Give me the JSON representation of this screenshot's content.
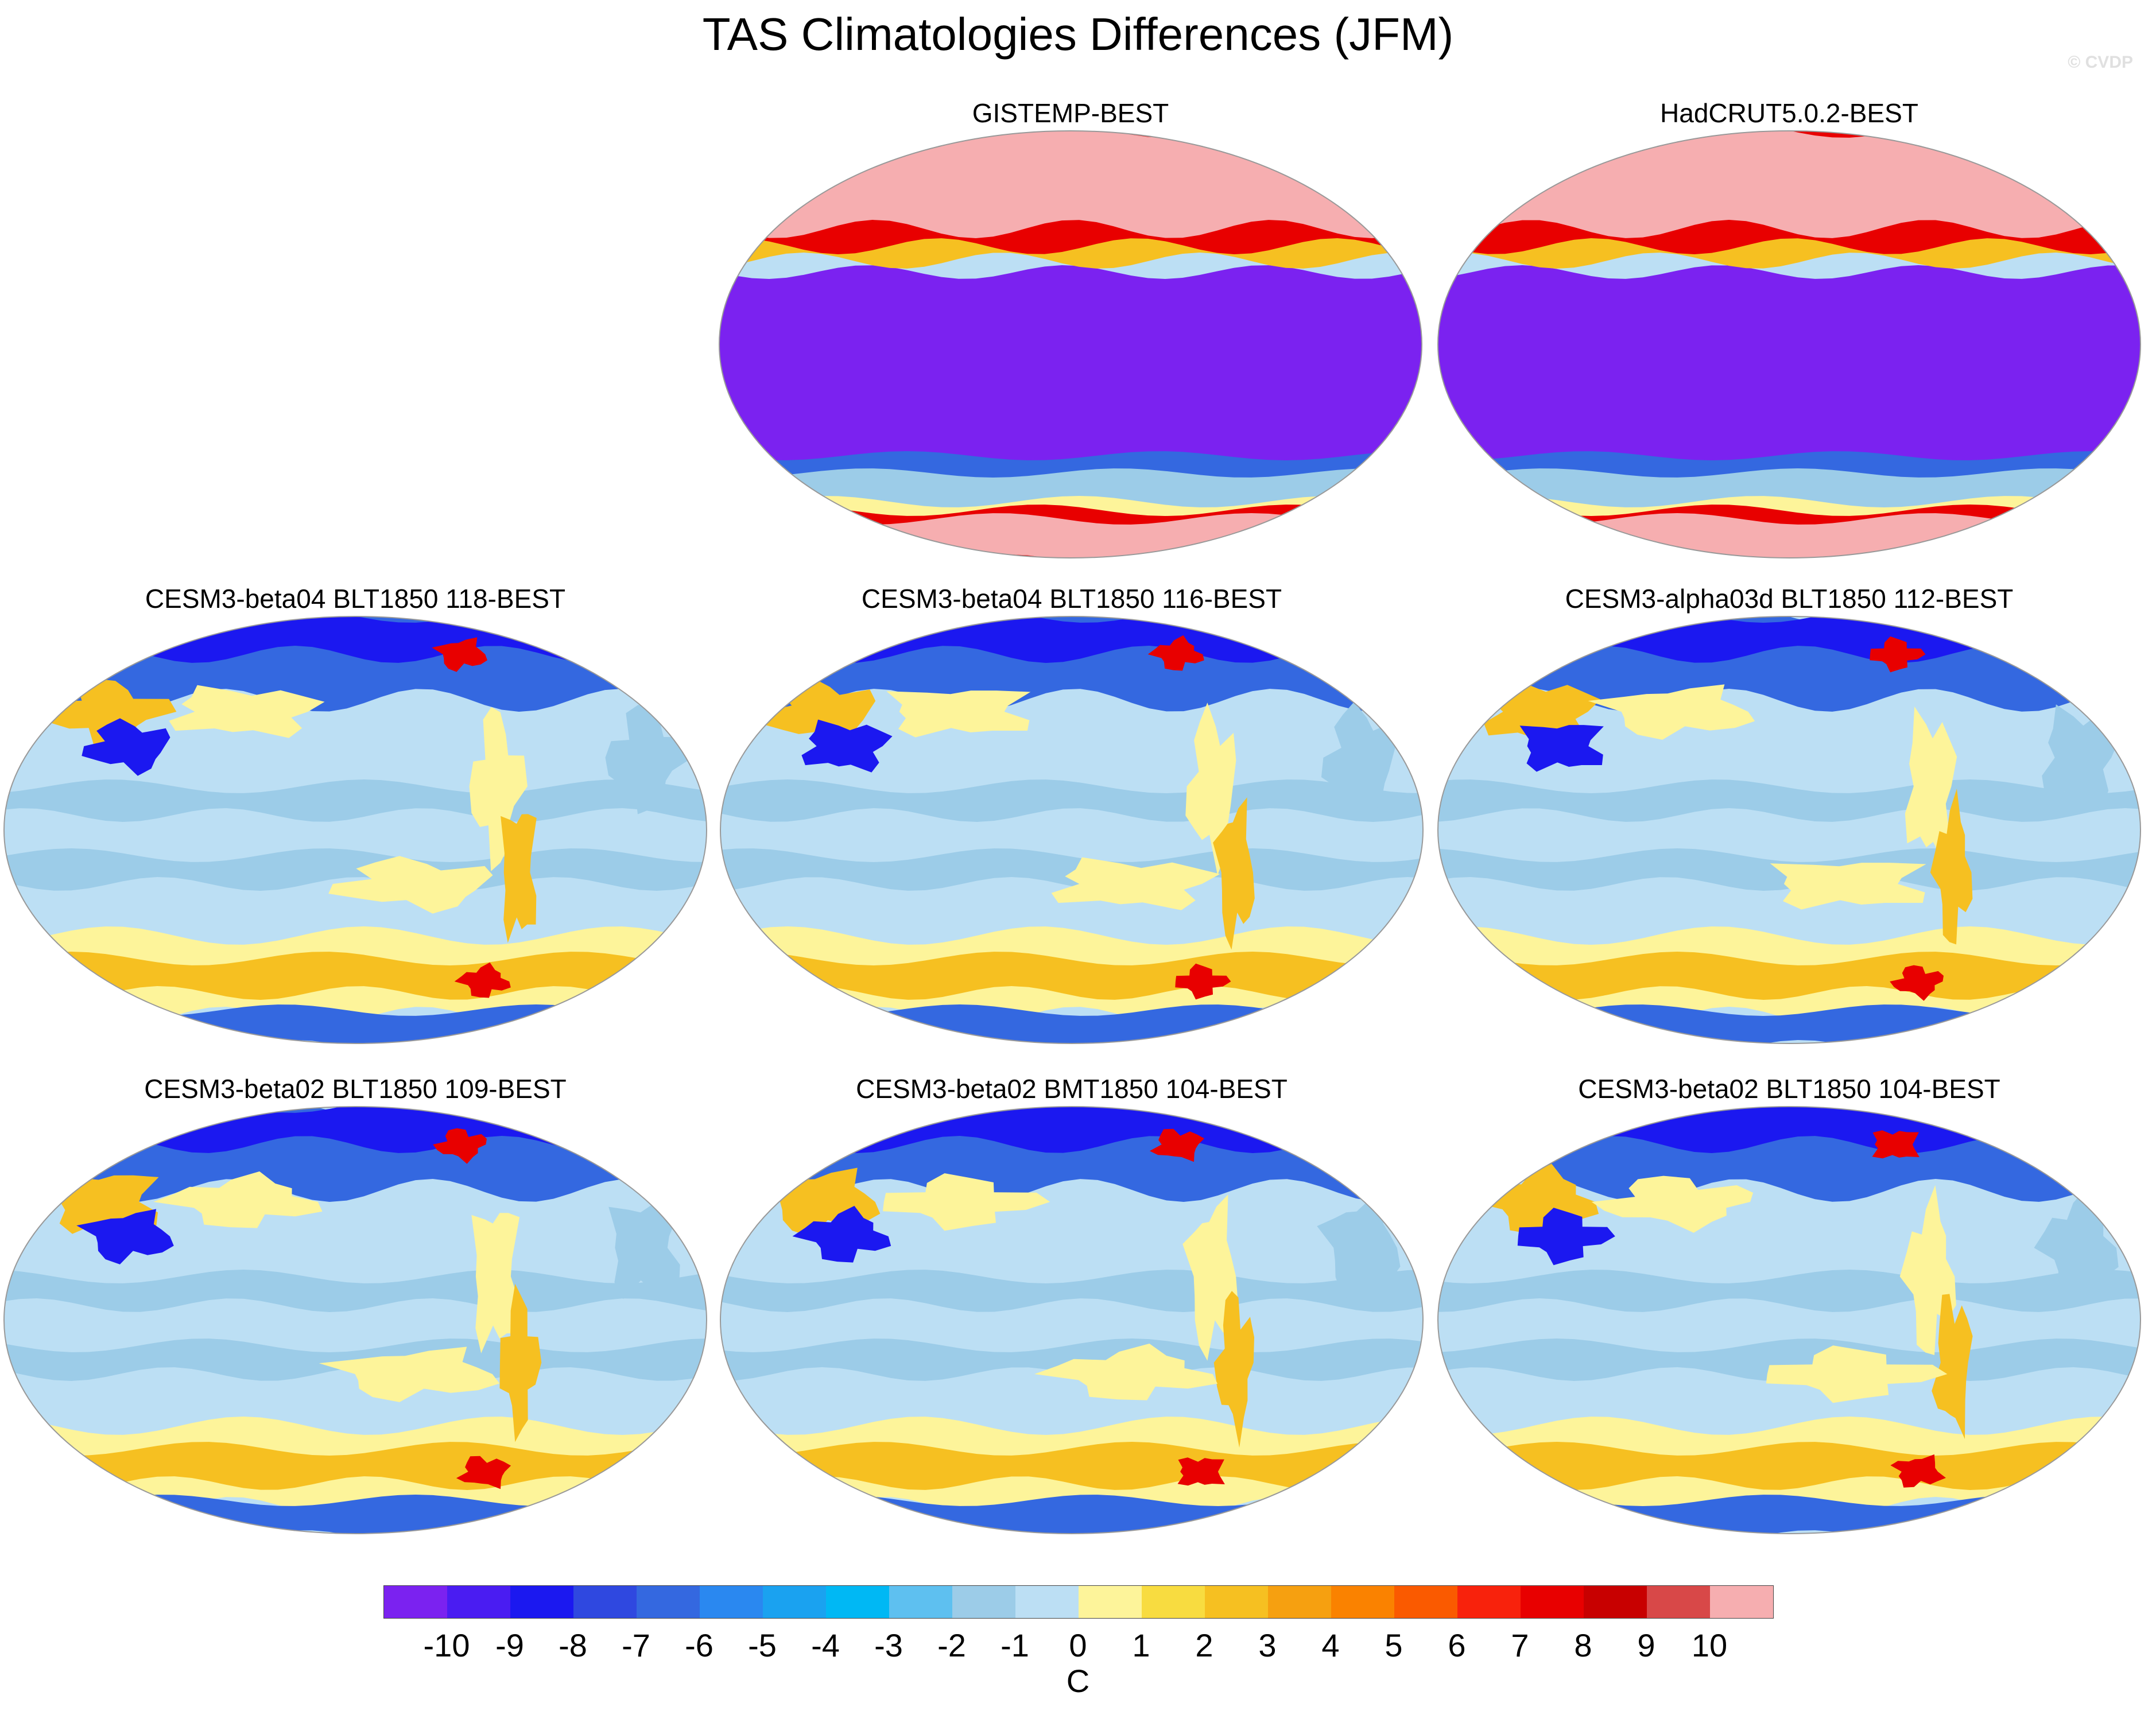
{
  "title": "TAS Climatologies Differences (JFM)",
  "credit": "© CVDP",
  "panels": [
    {
      "id": "p1",
      "title": "GISTEMP-BEST",
      "style": "obs"
    },
    {
      "id": "p2",
      "title": "HadCRUT5.0.2-BEST",
      "style": "obs"
    },
    {
      "id": "p3",
      "title": "CESM3-beta04 BLT1850 118-BEST",
      "style": "model"
    },
    {
      "id": "p4",
      "title": "CESM3-beta04 BLT1850 116-BEST",
      "style": "model"
    },
    {
      "id": "p5",
      "title": "CESM3-alpha03d BLT1850 112-BEST",
      "style": "model"
    },
    {
      "id": "p6",
      "title": "CESM3-beta02 BLT1850 109-BEST",
      "style": "model"
    },
    {
      "id": "p7",
      "title": "CESM3-beta02 BMT1850 104-BEST",
      "style": "model"
    },
    {
      "id": "p8",
      "title": "CESM3-beta02 BLT1850 104-BEST",
      "style": "model"
    }
  ],
  "colorbar": {
    "labels": [
      "-10",
      "-9",
      "-8",
      "-7",
      "-6",
      "-5",
      "-4",
      "-3",
      "-2",
      "-1",
      "0",
      "1",
      "2",
      "3",
      "4",
      "5",
      "6",
      "7",
      "8",
      "9",
      "10"
    ],
    "colors": [
      "#7b22f0",
      "#4a1cf2",
      "#1b18f0",
      "#2f48e0",
      "#3468e0",
      "#2a88f0",
      "#1aa2f0",
      "#00b8f4",
      "#5ec0f0",
      "#9ccce8",
      "#bcdff4",
      "#fdf49a",
      "#f8dc40",
      "#f6c021",
      "#f6a010",
      "#fa8200",
      "#fa5a00",
      "#f8220c",
      "#e80000",
      "#c80000",
      "#d84848",
      "#f6aeb0"
    ],
    "units": "C"
  },
  "colors": {
    "obs_fill": "#7b22f0",
    "pink": "#f6aeb0",
    "red": "#e80000",
    "blue_band": "#1b18f0",
    "light_blue": "#bcdff4",
    "mid_blue": "#9ccce8",
    "yellow": "#fdf49a",
    "orange": "#f6c021",
    "dark_blue": "#3468e0"
  }
}
